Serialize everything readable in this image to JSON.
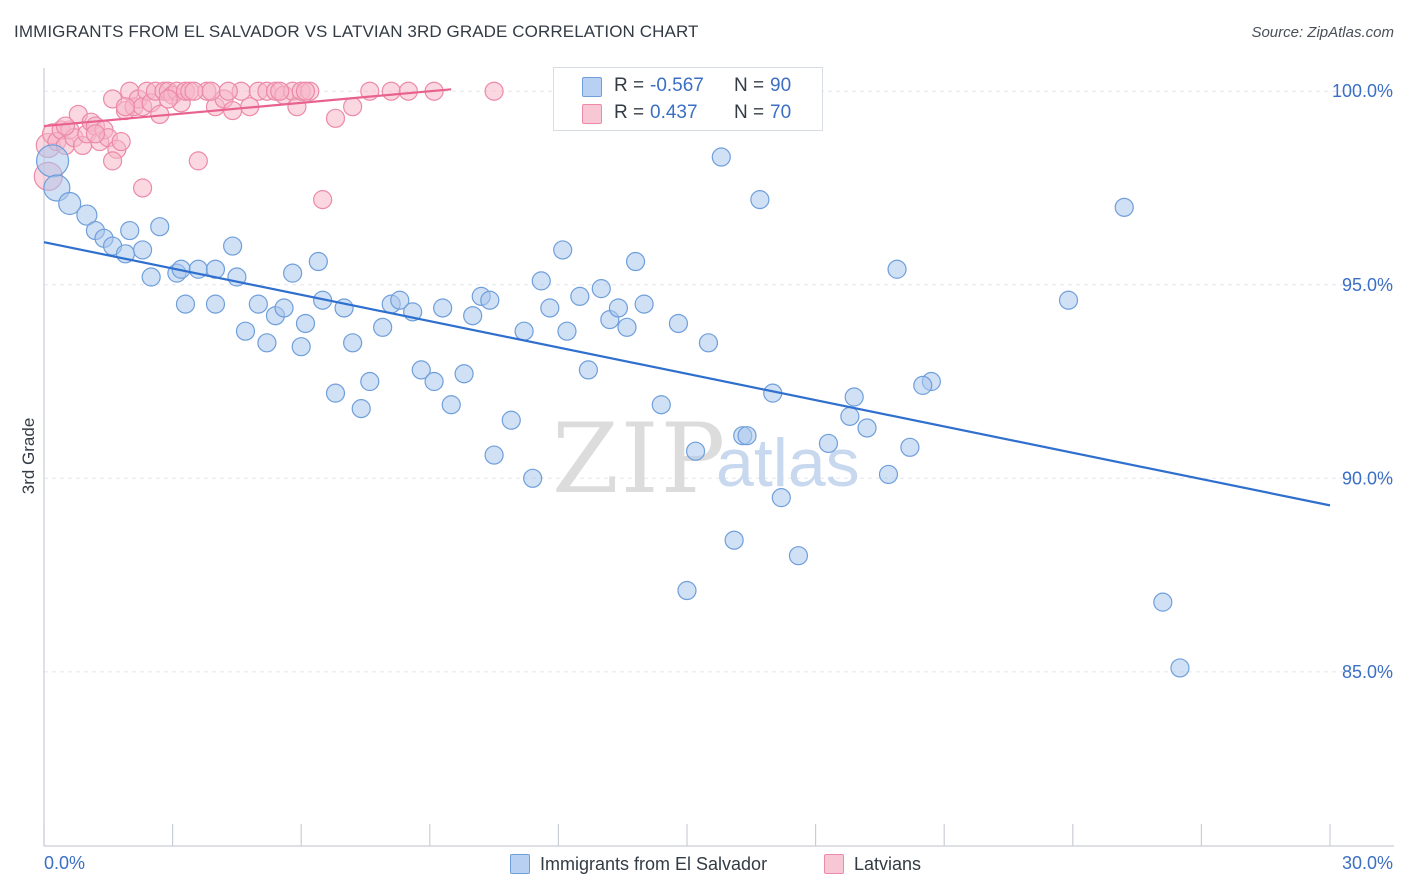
{
  "header": {
    "title": "IMMIGRANTS FROM EL SALVADOR VS LATVIAN 3RD GRADE CORRELATION CHART",
    "source": "Source: ZipAtlas.com"
  },
  "watermark": {
    "zip": "ZIP",
    "atlas": "atlas"
  },
  "legend": {
    "rows": [
      {
        "r_label": "R =",
        "r_value": "-0.567",
        "n_label": "N =",
        "n_value": "90"
      },
      {
        "r_label": "R =",
        "r_value": "0.437",
        "n_label": "N =",
        "n_value": "70"
      }
    ]
  },
  "bottom_legend": {
    "items": [
      {
        "label": "Immigrants from El Salvador"
      },
      {
        "label": "Latvians"
      }
    ]
  },
  "colors": {
    "blue_fill": "#a9c6ec",
    "blue_stroke": "#6f9fdb",
    "blue_line": "#2f6fce",
    "pink_fill": "#f5b6c9",
    "pink_stroke": "#ec8aa8",
    "pink_line": "#e8628f",
    "tick_text": "#3b6fc4",
    "grid": "#e2e6ec"
  },
  "chart_data": {
    "type": "scatter",
    "title": "IMMIGRANTS FROM EL SALVADOR VS LATVIAN 3RD GRADE CORRELATION CHART",
    "xlabel": "",
    "ylabel": "3rd Grade",
    "xlim": [
      0,
      30
    ],
    "ylim": [
      80.5,
      100.6
    ],
    "x_tick_labels": [
      "0.0%",
      "30.0%"
    ],
    "y_ticks": [
      {
        "value": 100,
        "label": "100.0%"
      },
      {
        "value": 95,
        "label": "95.0%"
      },
      {
        "value": 90,
        "label": "90.0%"
      },
      {
        "value": 85,
        "label": "85.0%"
      }
    ],
    "grid": true,
    "legend_position": "top-center",
    "series": [
      {
        "name": "Immigrants from El Salvador",
        "r": -0.567,
        "n": 90,
        "trend": [
          [
            0,
            96.1
          ],
          [
            30,
            89.3
          ]
        ],
        "points": [
          [
            0.2,
            98.2,
            16
          ],
          [
            0.3,
            97.5,
            13
          ],
          [
            0.6,
            97.1,
            11
          ],
          [
            1.0,
            96.8,
            10
          ],
          [
            1.2,
            96.4,
            9
          ],
          [
            1.4,
            96.2,
            9
          ],
          [
            1.6,
            96.0,
            9
          ],
          [
            1.9,
            95.8,
            9
          ],
          [
            2.0,
            96.4,
            9
          ],
          [
            2.3,
            95.9,
            9
          ],
          [
            2.5,
            95.2,
            9
          ],
          [
            2.7,
            96.5,
            9
          ],
          [
            3.1,
            95.3,
            9
          ],
          [
            3.2,
            95.4,
            9
          ],
          [
            3.3,
            94.5,
            9
          ],
          [
            3.6,
            95.4,
            9
          ],
          [
            4.0,
            95.4,
            9
          ],
          [
            4.0,
            94.5,
            9
          ],
          [
            4.4,
            96.0,
            9
          ],
          [
            4.5,
            95.2,
            9
          ],
          [
            4.7,
            93.8,
            9
          ],
          [
            5.0,
            94.5,
            9
          ],
          [
            5.2,
            93.5,
            9
          ],
          [
            5.4,
            94.2,
            9
          ],
          [
            5.6,
            94.4,
            9
          ],
          [
            5.8,
            95.3,
            9
          ],
          [
            6.0,
            93.4,
            9
          ],
          [
            6.1,
            94.0,
            9
          ],
          [
            6.4,
            95.6,
            9
          ],
          [
            6.5,
            94.6,
            9
          ],
          [
            6.8,
            92.2,
            9
          ],
          [
            7.0,
            94.4,
            9
          ],
          [
            7.2,
            93.5,
            9
          ],
          [
            7.4,
            91.8,
            9
          ],
          [
            7.6,
            92.5,
            9
          ],
          [
            7.9,
            93.9,
            9
          ],
          [
            8.1,
            94.5,
            9
          ],
          [
            8.3,
            94.6,
            9
          ],
          [
            8.6,
            94.3,
            9
          ],
          [
            8.8,
            92.8,
            9
          ],
          [
            9.1,
            92.5,
            9
          ],
          [
            9.3,
            94.4,
            9
          ],
          [
            9.5,
            91.9,
            9
          ],
          [
            9.8,
            92.7,
            9
          ],
          [
            10.0,
            94.2,
            9
          ],
          [
            10.2,
            94.7,
            9
          ],
          [
            10.4,
            94.6,
            9
          ],
          [
            10.5,
            90.6,
            9
          ],
          [
            10.9,
            91.5,
            9
          ],
          [
            11.2,
            93.8,
            9
          ],
          [
            11.4,
            90.0,
            9
          ],
          [
            11.6,
            95.1,
            9
          ],
          [
            11.8,
            94.4,
            9
          ],
          [
            12.1,
            95.9,
            9
          ],
          [
            12.2,
            93.8,
            9
          ],
          [
            12.5,
            94.7,
            9
          ],
          [
            12.7,
            92.8,
            9
          ],
          [
            12.9,
            99.6,
            9
          ],
          [
            13.0,
            94.9,
            9
          ],
          [
            13.2,
            94.1,
            9
          ],
          [
            13.4,
            94.4,
            9
          ],
          [
            13.6,
            93.9,
            9
          ],
          [
            13.8,
            95.6,
            9
          ],
          [
            14.0,
            94.5,
            9
          ],
          [
            14.4,
            91.9,
            9
          ],
          [
            14.8,
            94.0,
            9
          ],
          [
            15.0,
            87.1,
            9
          ],
          [
            15.2,
            90.7,
            9
          ],
          [
            15.5,
            93.5,
            9
          ],
          [
            15.8,
            98.3,
            9
          ],
          [
            16.1,
            88.4,
            9
          ],
          [
            16.3,
            91.1,
            9
          ],
          [
            16.4,
            91.1,
            9
          ],
          [
            16.7,
            97.2,
            9
          ],
          [
            17.0,
            92.2,
            9
          ],
          [
            17.2,
            89.5,
            9
          ],
          [
            17.6,
            88.0,
            9
          ],
          [
            18.3,
            90.9,
            9
          ],
          [
            18.8,
            91.6,
            9
          ],
          [
            18.9,
            92.1,
            9
          ],
          [
            19.2,
            91.3,
            9
          ],
          [
            19.7,
            90.1,
            9
          ],
          [
            19.9,
            95.4,
            9
          ],
          [
            20.2,
            90.8,
            9
          ],
          [
            20.7,
            92.5,
            9
          ],
          [
            23.9,
            94.6,
            9
          ],
          [
            25.2,
            97.0,
            9
          ],
          [
            26.1,
            86.8,
            9
          ],
          [
            26.5,
            85.1,
            9
          ],
          [
            20.5,
            92.4,
            9
          ]
        ]
      },
      {
        "name": "Latvians",
        "r": 0.437,
        "n": 70,
        "trend": [
          [
            0,
            99.1
          ],
          [
            9.5,
            100.05
          ]
        ],
        "points": [
          [
            0.1,
            98.6,
            12
          ],
          [
            0.1,
            97.8,
            14
          ],
          [
            0.2,
            98.9,
            10
          ],
          [
            0.3,
            98.7,
            9
          ],
          [
            0.4,
            99.0,
            9
          ],
          [
            0.5,
            98.6,
            9
          ],
          [
            0.6,
            99.0,
            9
          ],
          [
            0.7,
            98.8,
            9
          ],
          [
            0.8,
            99.4,
            9
          ],
          [
            0.9,
            98.6,
            9
          ],
          [
            1.0,
            98.9,
            9
          ],
          [
            1.1,
            99.2,
            9
          ],
          [
            1.2,
            99.1,
            9
          ],
          [
            1.3,
            98.7,
            9
          ],
          [
            1.4,
            99.0,
            9
          ],
          [
            1.5,
            98.8,
            9
          ],
          [
            1.6,
            99.8,
            9
          ],
          [
            1.7,
            98.5,
            9
          ],
          [
            1.8,
            98.7,
            9
          ],
          [
            1.9,
            99.5,
            9
          ],
          [
            2.0,
            100.0,
            9
          ],
          [
            2.1,
            99.6,
            9
          ],
          [
            2.2,
            99.8,
            9
          ],
          [
            2.3,
            99.6,
            9
          ],
          [
            2.4,
            100.0,
            9
          ],
          [
            2.5,
            99.7,
            9
          ],
          [
            2.6,
            100.0,
            9
          ],
          [
            2.7,
            99.4,
            9
          ],
          [
            2.8,
            100.0,
            9
          ],
          [
            2.9,
            100.0,
            9
          ],
          [
            3.0,
            99.9,
            9
          ],
          [
            3.1,
            100.0,
            9
          ],
          [
            3.2,
            99.7,
            9
          ],
          [
            3.3,
            100.0,
            9
          ],
          [
            3.4,
            100.0,
            9
          ],
          [
            3.6,
            98.2,
            9
          ],
          [
            3.8,
            100.0,
            9
          ],
          [
            4.0,
            99.6,
            9
          ],
          [
            4.2,
            99.8,
            9
          ],
          [
            4.4,
            99.5,
            9
          ],
          [
            4.6,
            100.0,
            9
          ],
          [
            4.8,
            99.6,
            9
          ],
          [
            5.0,
            100.0,
            9
          ],
          [
            5.2,
            100.0,
            9
          ],
          [
            5.4,
            100.0,
            9
          ],
          [
            5.6,
            99.9,
            9
          ],
          [
            5.8,
            100.0,
            9
          ],
          [
            5.9,
            99.6,
            9
          ],
          [
            6.0,
            100.0,
            9
          ],
          [
            6.2,
            100.0,
            9
          ],
          [
            6.5,
            97.2,
            9
          ],
          [
            6.8,
            99.3,
            9
          ],
          [
            7.2,
            99.6,
            9
          ],
          [
            7.6,
            100.0,
            9
          ],
          [
            8.1,
            100.0,
            9
          ],
          [
            8.5,
            100.0,
            9
          ],
          [
            9.1,
            100.0,
            9
          ],
          [
            10.5,
            100.0,
            9
          ],
          [
            15.0,
            100.0,
            9
          ],
          [
            2.3,
            97.5,
            9
          ],
          [
            1.6,
            98.2,
            9
          ],
          [
            1.2,
            98.9,
            9
          ],
          [
            0.5,
            99.1,
            9
          ],
          [
            3.5,
            100.0,
            9
          ],
          [
            3.9,
            100.0,
            9
          ],
          [
            4.3,
            100.0,
            9
          ],
          [
            5.5,
            100.0,
            9
          ],
          [
            6.1,
            100.0,
            9
          ],
          [
            2.9,
            99.8,
            9
          ],
          [
            1.9,
            99.6,
            9
          ]
        ]
      }
    ]
  }
}
